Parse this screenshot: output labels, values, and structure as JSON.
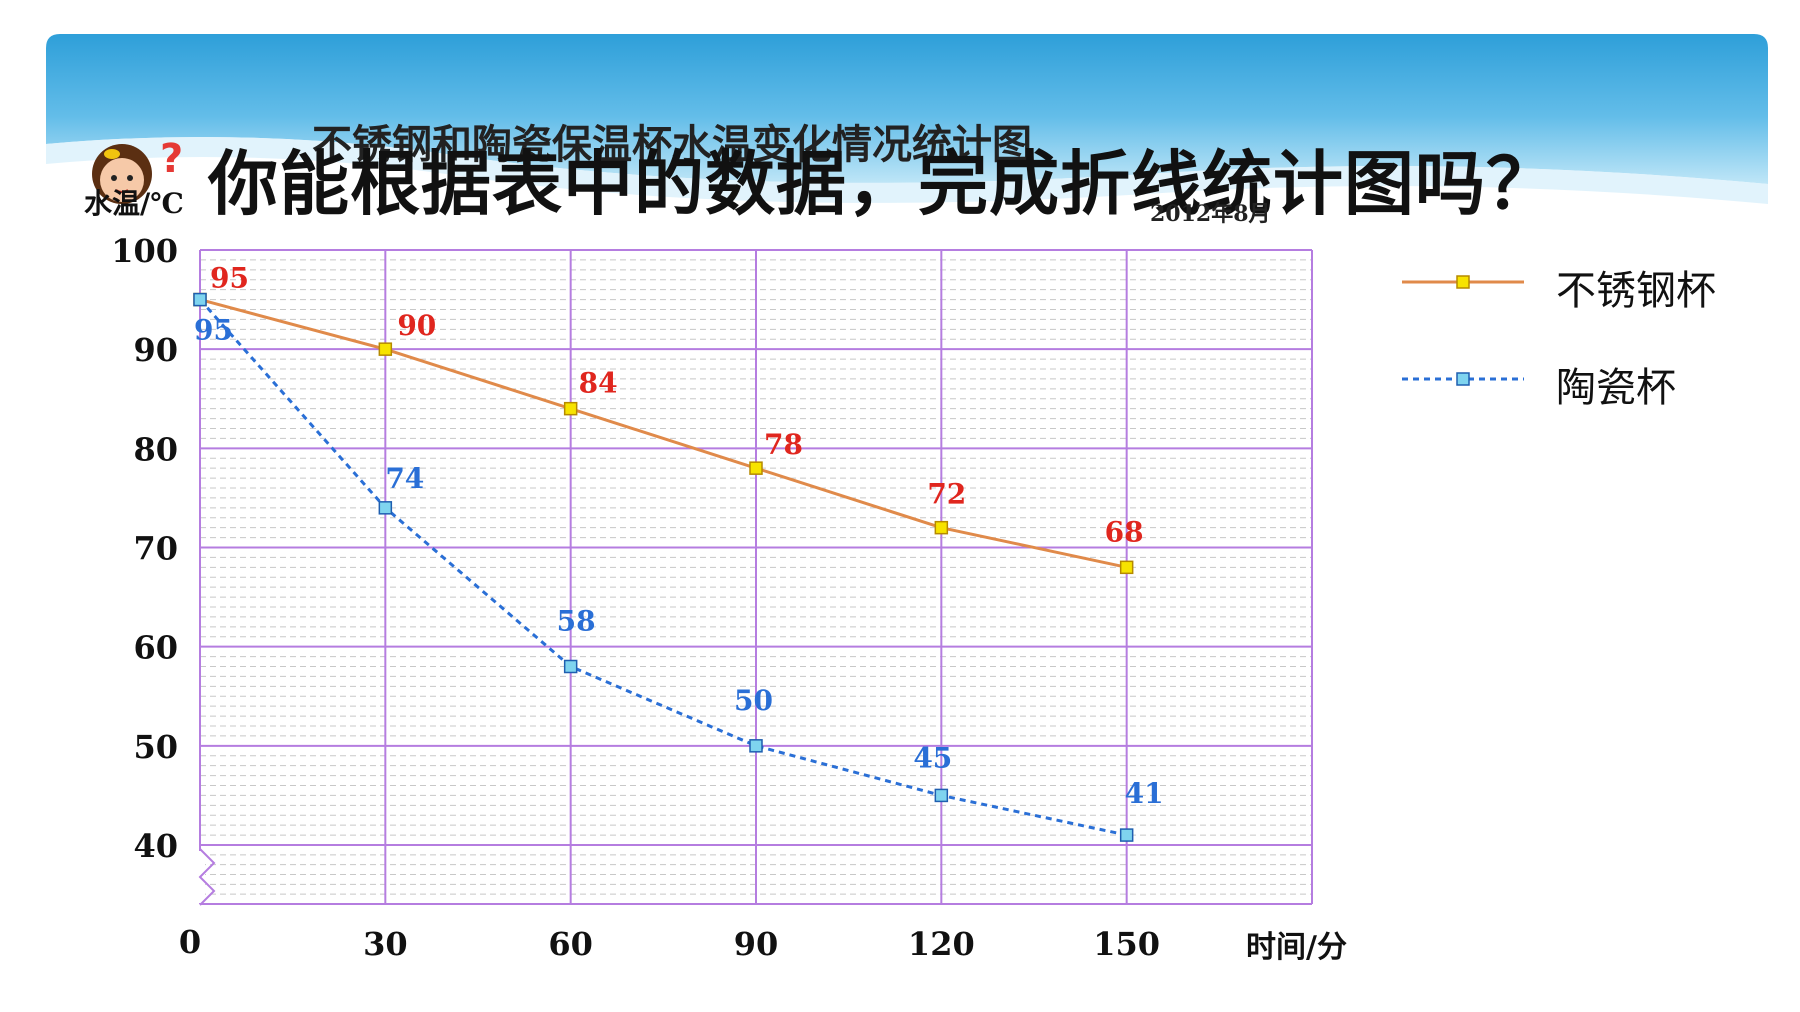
{
  "header": {
    "question": "你能根据表中的数据，完成折线统计图吗？"
  },
  "colors": {
    "series_a": "#e08a4a",
    "series_a_marker": "#f7e300",
    "series_a_label": "#e0261e",
    "series_b": "#2a6fd6",
    "series_b_marker": "#7fd4ef",
    "series_b_label": "#2a6fd6",
    "grid_major": "#b57de0",
    "grid_minor": "#c8c8c8",
    "banner_top": "#2e9fd9",
    "banner_bottom": "#bfe6f7"
  },
  "icons": {
    "header_icon": "girl-question-icon",
    "axis_break": "axis-break-icon"
  },
  "chart_data": {
    "type": "line",
    "title": "不锈钢和陶瓷保温杯水温变化情况统计图",
    "subtitle": "2012年8月",
    "xlabel": "时间/分",
    "ylabel": "水温/℃",
    "x": [
      0,
      30,
      60,
      90,
      120,
      150
    ],
    "x_tick_labels": [
      "0",
      "30",
      "60",
      "90",
      "120",
      "150"
    ],
    "y_tick_labels": [
      "40",
      "50",
      "60",
      "70",
      "80",
      "90",
      "100"
    ],
    "ylim": [
      40,
      100
    ],
    "y_axis_break": "below 40",
    "grid": true,
    "legend_position": "right",
    "series": [
      {
        "name": "不锈钢杯",
        "values": [
          95,
          90,
          84,
          78,
          72,
          68
        ],
        "line_style": "solid",
        "marker": "square"
      },
      {
        "name": "陶瓷杯",
        "values": [
          95,
          74,
          58,
          50,
          45,
          41
        ],
        "line_style": "dashed",
        "marker": "square"
      }
    ]
  }
}
